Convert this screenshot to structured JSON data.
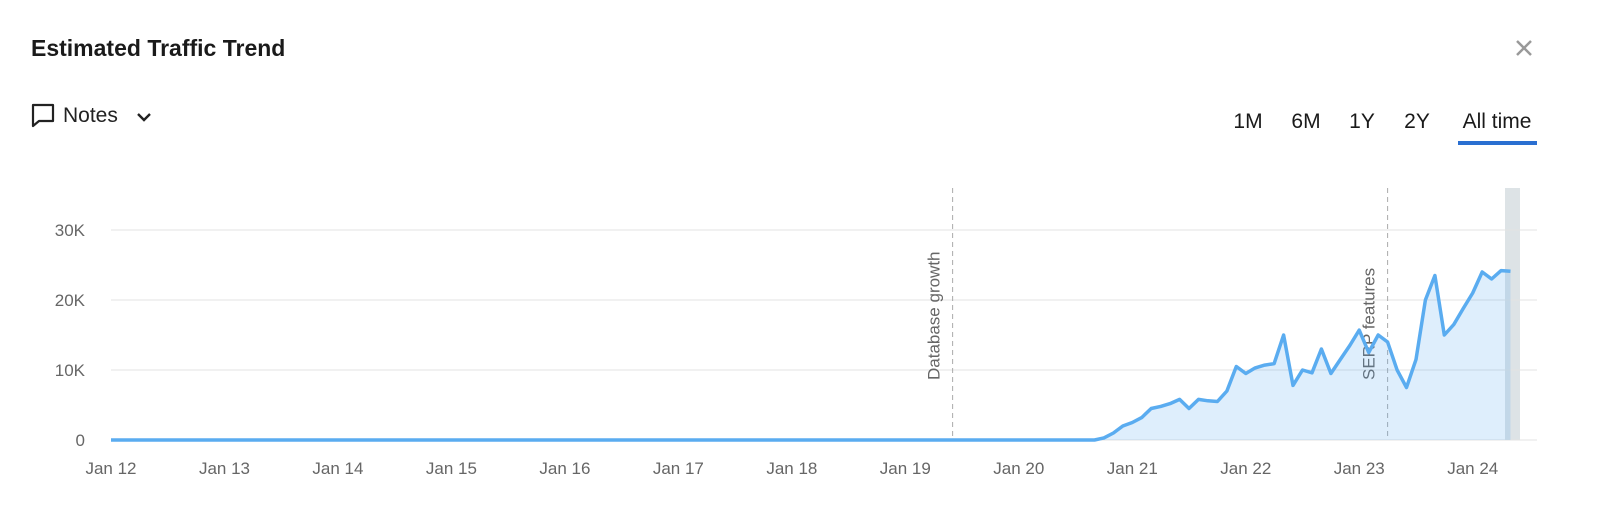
{
  "header": {
    "title": "Estimated Traffic Trend"
  },
  "notes": {
    "label": "Notes"
  },
  "ranges": [
    {
      "label": "1M"
    },
    {
      "label": "6M"
    },
    {
      "label": "1Y"
    },
    {
      "label": "2Y"
    },
    {
      "label": "All time",
      "active": true
    }
  ],
  "chart_data": {
    "type": "area",
    "x": [
      "2012-01",
      "2020-09",
      "2020-10",
      "2020-11",
      "2020-12",
      "2021-01",
      "2021-02",
      "2021-03",
      "2021-04",
      "2021-05",
      "2021-06",
      "2021-07",
      "2021-08",
      "2021-09",
      "2021-10",
      "2021-11",
      "2021-12",
      "2022-01",
      "2022-02",
      "2022-03",
      "2022-04",
      "2022-05",
      "2022-06",
      "2022-07",
      "2022-08",
      "2022-09",
      "2022-10",
      "2022-11",
      "2022-12",
      "2023-01",
      "2023-02",
      "2023-03",
      "2023-04",
      "2023-05",
      "2023-06",
      "2023-07",
      "2023-08",
      "2023-09",
      "2023-10",
      "2023-11",
      "2023-12",
      "2024-01",
      "2024-02",
      "2024-03",
      "2024-04",
      "2024-05"
    ],
    "series": [
      {
        "color": "#5aacf0",
        "values": [
          0,
          0,
          300,
          1000,
          2000,
          2500,
          3200,
          4500,
          4800,
          5200,
          5800,
          4500,
          5800,
          5600,
          5500,
          7000,
          10500,
          9500,
          10300,
          10700,
          10900,
          15000,
          7800,
          10000,
          9600,
          13000,
          9500,
          11500,
          13500,
          15700,
          12500,
          15000,
          14000,
          10000,
          7500,
          11500,
          20000,
          23500,
          15000,
          16500,
          18800,
          21000,
          24000,
          23000,
          24200,
          24100
        ]
      }
    ],
    "xlim": [
      "2012-01",
      "2024-06"
    ],
    "xticks": [
      {
        "value": "2012-01",
        "label": "Jan 12"
      },
      {
        "value": "2013-01",
        "label": "Jan 13"
      },
      {
        "value": "2014-01",
        "label": "Jan 14"
      },
      {
        "value": "2015-01",
        "label": "Jan 15"
      },
      {
        "value": "2016-01",
        "label": "Jan 16"
      },
      {
        "value": "2017-01",
        "label": "Jan 17"
      },
      {
        "value": "2018-01",
        "label": "Jan 18"
      },
      {
        "value": "2019-01",
        "label": "Jan 19"
      },
      {
        "value": "2020-01",
        "label": "Jan 20"
      },
      {
        "value": "2021-01",
        "label": "Jan 21"
      },
      {
        "value": "2022-01",
        "label": "Jan 22"
      },
      {
        "value": "2023-01",
        "label": "Jan 23"
      },
      {
        "value": "2024-01",
        "label": "Jan 24"
      }
    ],
    "ylim": [
      0,
      36000
    ],
    "yticks": [
      0,
      {
        "value": 10000,
        "label": "10K"
      },
      {
        "value": 20000,
        "label": "20K"
      },
      {
        "value": 30000,
        "label": "30K"
      }
    ],
    "grid": true,
    "annotations": [
      {
        "x": "2019-06",
        "label": "Database growth"
      },
      {
        "x": "2023-04",
        "label": "SERP features"
      }
    ]
  }
}
